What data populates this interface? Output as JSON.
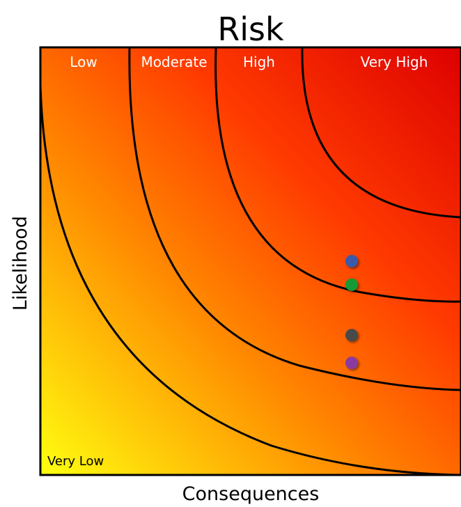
{
  "title": "Risk",
  "x_axis_label": "Consequences",
  "y_axis_label": "Likelihood",
  "zones": [
    {
      "key": "low",
      "label": "Low"
    },
    {
      "key": "moderate",
      "label": "Moderate"
    },
    {
      "key": "high",
      "label": "High"
    },
    {
      "key": "very_high",
      "label": "Very High"
    },
    {
      "key": "very_low",
      "label": "Very Low"
    }
  ],
  "colors": {
    "low_risk": "#ffff10",
    "mid_risk": "#ff8a00",
    "high_risk": "#ff3a00",
    "very_high_risk": "#dd0000",
    "boundary": "#000000"
  },
  "risk_points": [
    {
      "color": "#3a5aa8",
      "consequence": 0.74,
      "likelihood": 0.5
    },
    {
      "color": "#149a34",
      "consequence": 0.74,
      "likelihood": 0.445
    },
    {
      "color": "#4a4a4a",
      "consequence": 0.74,
      "likelihood": 0.327
    },
    {
      "color": "#8a3aa0",
      "consequence": 0.74,
      "likelihood": 0.262
    }
  ]
}
